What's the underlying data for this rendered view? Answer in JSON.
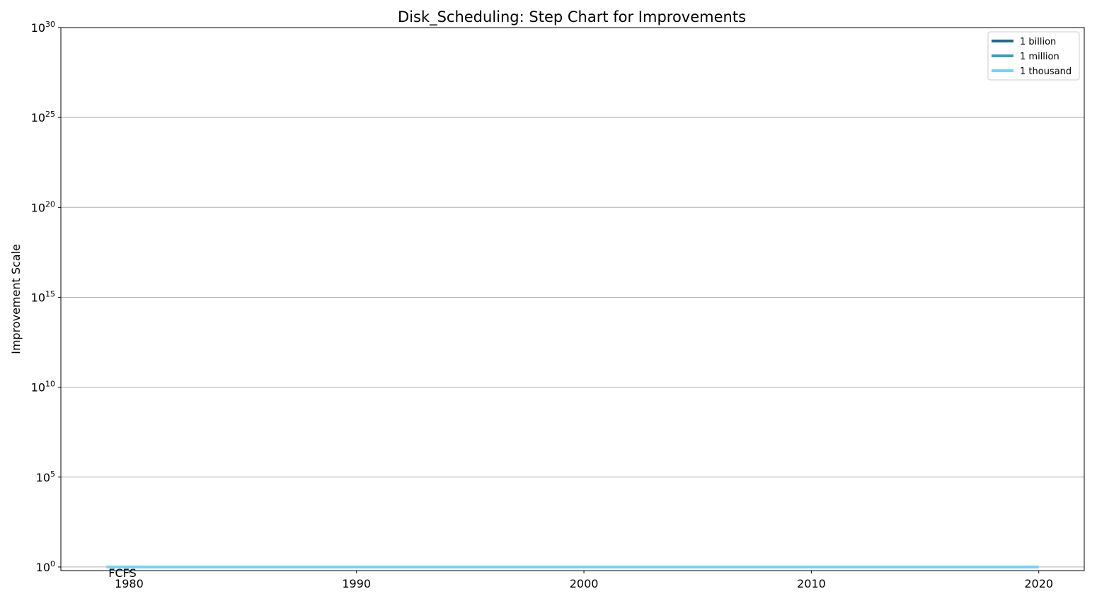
{
  "chart_data": {
    "type": "line",
    "title": "Disk_Scheduling: Step Chart for Improvements",
    "xlabel": "",
    "ylabel": "Improvement Scale",
    "y_scale": "log",
    "xlim": [
      1977,
      2022
    ],
    "ylim_exponents": [
      -0.2,
      30
    ],
    "x_ticks": [
      1980,
      1990,
      2000,
      2010,
      2020
    ],
    "y_tick_exponents": [
      0,
      5,
      10,
      15,
      20,
      25,
      30
    ],
    "y_tick_base": "10",
    "grid": "horizontal",
    "legend_position": "top-right",
    "legend": [
      {
        "label": "1 billion",
        "color": "#16708f"
      },
      {
        "label": "1 million",
        "color": "#3a9fbf"
      },
      {
        "label": "1 thousand",
        "color": "#76d3f5"
      }
    ],
    "series": [
      {
        "points": [
          [
            1979,
            1
          ],
          [
            2020,
            1
          ]
        ],
        "color": "#76d3f5",
        "step": true
      }
    ],
    "annotations": [
      {
        "text": "FCFS",
        "x": 1979,
        "y": 1
      }
    ]
  }
}
